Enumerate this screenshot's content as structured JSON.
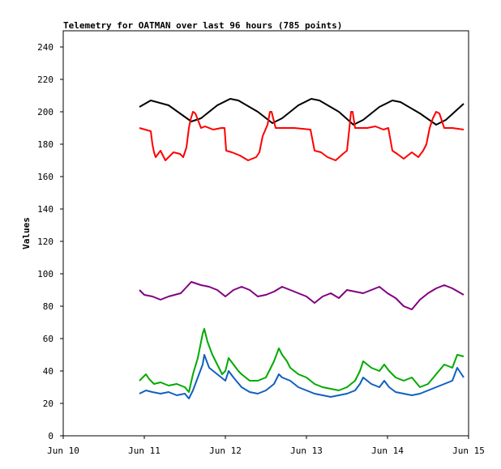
{
  "chart_data": {
    "type": "line",
    "title": "Telemetry for OATMAN over last 96 hours (785 points)",
    "xlabel": "",
    "ylabel": "Values",
    "x_unit": "days since Jun 10 00:00",
    "xlim": [
      0,
      5
    ],
    "ylim": [
      0,
      250
    ],
    "x_ticks": [
      {
        "value": 0,
        "label": "Jun 10"
      },
      {
        "value": 1,
        "label": "Jun 11"
      },
      {
        "value": 2,
        "label": "Jun 12"
      },
      {
        "value": 3,
        "label": "Jun 13"
      },
      {
        "value": 4,
        "label": "Jun 14"
      },
      {
        "value": 5,
        "label": "Jun 15"
      }
    ],
    "y_ticks": [
      0,
      20,
      40,
      60,
      80,
      100,
      120,
      140,
      160,
      180,
      200,
      220,
      240
    ],
    "grid": false,
    "legend": "none",
    "series": [
      {
        "color": "#000000",
        "x": [
          0.94,
          1.08,
          1.3,
          1.58,
          1.7,
          1.9,
          2.06,
          2.16,
          2.4,
          2.58,
          2.7,
          2.9,
          3.06,
          3.16,
          3.4,
          3.58,
          3.7,
          3.9,
          4.06,
          4.16,
          4.4,
          4.6,
          4.72,
          4.94
        ],
        "y": [
          203,
          207,
          204,
          194,
          196,
          204,
          208,
          207,
          200,
          193,
          196,
          204,
          208,
          207,
          200,
          192,
          195,
          203,
          207,
          206,
          199,
          192,
          195,
          205
        ]
      },
      {
        "color": "#ff0000",
        "x": [
          0.94,
          1.08,
          1.1,
          1.12,
          1.14,
          1.2,
          1.26,
          1.36,
          1.44,
          1.48,
          1.52,
          1.55,
          1.57,
          1.6,
          1.63,
          1.7,
          1.75,
          1.85,
          1.95,
          1.99,
          2.01,
          2.08,
          2.18,
          2.28,
          2.38,
          2.42,
          2.46,
          2.52,
          2.55,
          2.57,
          2.62,
          2.64,
          2.68,
          2.75,
          2.85,
          3.05,
          3.1,
          3.18,
          3.26,
          3.36,
          3.45,
          3.5,
          3.53,
          3.55,
          3.57,
          3.6,
          3.64,
          3.7,
          3.75,
          3.85,
          3.95,
          4.01,
          4.06,
          4.12,
          4.2,
          4.3,
          4.38,
          4.44,
          4.48,
          4.52,
          4.56,
          4.6,
          4.64,
          4.7,
          4.8,
          4.94
        ],
        "y": [
          190,
          188,
          180,
          175,
          172,
          176,
          170,
          175,
          174,
          172,
          178,
          190,
          195,
          200,
          199,
          190,
          191,
          189,
          190,
          190,
          176,
          175,
          173,
          170,
          172,
          175,
          185,
          192,
          200,
          200,
          190,
          190,
          190,
          190,
          190,
          189,
          176,
          175,
          172,
          170,
          174,
          176,
          190,
          200,
          200,
          190,
          190,
          190,
          190,
          191,
          189,
          190,
          176,
          174,
          171,
          175,
          172,
          176,
          180,
          190,
          196,
          200,
          199,
          190,
          190,
          189
        ]
      },
      {
        "color": "#800080",
        "x": [
          0.94,
          1.0,
          1.1,
          1.2,
          1.3,
          1.45,
          1.58,
          1.7,
          1.8,
          1.9,
          2.0,
          2.1,
          2.2,
          2.3,
          2.4,
          2.5,
          2.6,
          2.7,
          2.8,
          2.9,
          3.0,
          3.1,
          3.2,
          3.3,
          3.4,
          3.5,
          3.6,
          3.7,
          3.8,
          3.9,
          4.0,
          4.1,
          4.2,
          4.3,
          4.4,
          4.5,
          4.6,
          4.7,
          4.8,
          4.94
        ],
        "y": [
          90,
          87,
          86,
          84,
          86,
          88,
          95,
          93,
          92,
          90,
          86,
          90,
          92,
          90,
          86,
          87,
          89,
          92,
          90,
          88,
          86,
          82,
          86,
          88,
          85,
          90,
          89,
          88,
          90,
          92,
          88,
          85,
          80,
          78,
          84,
          88,
          91,
          93,
          91,
          87
        ]
      },
      {
        "color": "#00aa00",
        "x": [
          0.94,
          1.02,
          1.06,
          1.12,
          1.2,
          1.3,
          1.4,
          1.5,
          1.55,
          1.6,
          1.66,
          1.72,
          1.74,
          1.78,
          1.84,
          1.9,
          1.96,
          2.0,
          2.04,
          2.1,
          2.16,
          2.2,
          2.3,
          2.4,
          2.5,
          2.6,
          2.66,
          2.7,
          2.76,
          2.8,
          2.9,
          3.0,
          3.1,
          3.2,
          3.3,
          3.4,
          3.5,
          3.6,
          3.66,
          3.7,
          3.8,
          3.9,
          3.96,
          4.02,
          4.1,
          4.2,
          4.3,
          4.4,
          4.5,
          4.6,
          4.7,
          4.8,
          4.86,
          4.94
        ],
        "y": [
          34,
          38,
          35,
          32,
          33,
          31,
          32,
          30,
          27,
          38,
          48,
          63,
          66,
          58,
          50,
          44,
          38,
          40,
          48,
          44,
          40,
          38,
          34,
          34,
          36,
          46,
          54,
          50,
          46,
          42,
          38,
          36,
          32,
          30,
          29,
          28,
          30,
          34,
          40,
          46,
          42,
          40,
          44,
          40,
          36,
          34,
          36,
          30,
          32,
          38,
          44,
          42,
          50,
          49
        ]
      },
      {
        "color": "#1060c0",
        "x": [
          0.94,
          1.02,
          1.1,
          1.2,
          1.3,
          1.4,
          1.5,
          1.55,
          1.6,
          1.66,
          1.72,
          1.74,
          1.8,
          1.9,
          2.0,
          2.04,
          2.1,
          2.2,
          2.3,
          2.4,
          2.5,
          2.6,
          2.66,
          2.7,
          2.8,
          2.9,
          3.0,
          3.1,
          3.2,
          3.3,
          3.4,
          3.5,
          3.6,
          3.66,
          3.7,
          3.8,
          3.9,
          3.96,
          4.02,
          4.1,
          4.2,
          4.3,
          4.4,
          4.5,
          4.6,
          4.7,
          4.8,
          4.86,
          4.94
        ],
        "y": [
          26,
          28,
          27,
          26,
          27,
          25,
          26,
          23,
          28,
          36,
          44,
          50,
          42,
          38,
          34,
          40,
          36,
          30,
          27,
          26,
          28,
          32,
          38,
          36,
          34,
          30,
          28,
          26,
          25,
          24,
          25,
          26,
          28,
          32,
          36,
          32,
          30,
          34,
          30,
          27,
          26,
          25,
          26,
          28,
          30,
          32,
          34,
          42,
          36
        ]
      }
    ]
  }
}
